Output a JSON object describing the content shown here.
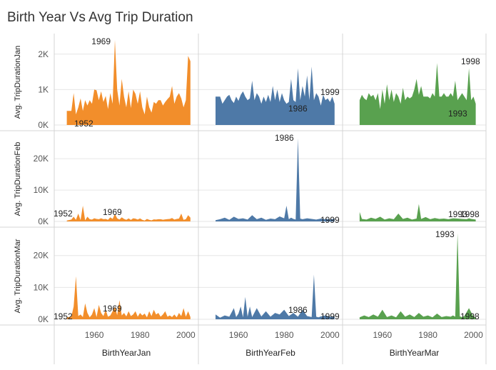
{
  "title": "Birth Year Vs Avg Trip Duration",
  "colors": {
    "Jan": "#f28e2b",
    "Feb": "#4e79a7",
    "Mar": "#59a14f",
    "grid": "#e6e6e6",
    "border": "#d4d4d4"
  },
  "chart_data": {
    "type": "area",
    "title": "Birth Year Vs Avg Trip Duration",
    "columns": [
      {
        "xlabel": "BirthYearJan",
        "xlim": [
          1945,
          2003
        ]
      },
      {
        "xlabel": "BirthYearFeb",
        "xlim": [
          1945,
          2003
        ]
      },
      {
        "xlabel": "BirthYearMar",
        "xlim": [
          1945,
          2003
        ]
      }
    ],
    "rows": [
      {
        "ylabel": "Avg. TripDurationJan",
        "ylim": [
          0,
          2500
        ],
        "yticks": [
          0,
          1000,
          2000
        ],
        "yticklabels": [
          "0K",
          "1K",
          "2K"
        ]
      },
      {
        "ylabel": "Avg. TripDurationFeb",
        "ylim": [
          0,
          28000
        ],
        "yticks": [
          0,
          10000,
          20000
        ],
        "yticklabels": [
          "0K",
          "10K",
          "20K"
        ]
      },
      {
        "ylabel": "Avg. TripDurationMar",
        "ylim": [
          0,
          28000
        ],
        "yticks": [
          0,
          10000,
          20000
        ],
        "yticklabels": [
          "0K",
          "10K",
          "20K"
        ]
      }
    ],
    "xticks": [
      1960,
      1980,
      2000
    ],
    "xticklabels": [
      "1960",
      "1980",
      "2000"
    ],
    "grid": true,
    "panels": [
      {
        "row": 0,
        "col": 0,
        "series": "Jan",
        "x": [
          1948,
          1950,
          1951,
          1952,
          1953,
          1954,
          1955,
          1956,
          1957,
          1958,
          1959,
          1960,
          1961,
          1962,
          1963,
          1964,
          1965,
          1966,
          1967,
          1968,
          1969,
          1970,
          1971,
          1972,
          1973,
          1974,
          1975,
          1976,
          1977,
          1978,
          1979,
          1980,
          1981,
          1982,
          1983,
          1984,
          1985,
          1986,
          1987,
          1988,
          1989,
          1990,
          1991,
          1992,
          1993,
          1994,
          1995,
          1996,
          1997,
          1998,
          1999,
          2000,
          2001,
          2002
        ],
        "y": [
          400,
          400,
          900,
          300,
          500,
          750,
          400,
          700,
          550,
          700,
          600,
          1000,
          980,
          700,
          950,
          650,
          820,
          450,
          900,
          600,
          2400,
          1000,
          550,
          1300,
          800,
          500,
          950,
          480,
          1000,
          880,
          600,
          950,
          500,
          300,
          800,
          500,
          350,
          650,
          600,
          700,
          700,
          550,
          650,
          730,
          800,
          1100,
          600,
          800,
          900,
          750,
          500,
          700,
          1950,
          1800
        ]
      },
      {
        "row": 0,
        "col": 1,
        "series": "Feb",
        "x": [
          1950,
          1951,
          1952,
          1953,
          1954,
          1955,
          1956,
          1957,
          1958,
          1959,
          1960,
          1961,
          1962,
          1963,
          1964,
          1965,
          1966,
          1967,
          1968,
          1969,
          1970,
          1971,
          1972,
          1973,
          1974,
          1975,
          1976,
          1977,
          1978,
          1979,
          1980,
          1981,
          1982,
          1983,
          1984,
          1985,
          1986,
          1987,
          1988,
          1989,
          1990,
          1991,
          1992,
          1993,
          1994,
          1995,
          1996,
          1997,
          1998,
          1999,
          2000,
          2001,
          2002
        ],
        "y": [
          800,
          800,
          800,
          600,
          700,
          800,
          850,
          700,
          620,
          800,
          680,
          850,
          950,
          800,
          700,
          750,
          1250,
          700,
          900,
          800,
          600,
          800,
          650,
          850,
          650,
          1100,
          700,
          1000,
          650,
          900,
          700,
          600,
          650,
          1300,
          700,
          650,
          1600,
          700,
          1100,
          800,
          1400,
          700,
          1650,
          700,
          900,
          800,
          550,
          850,
          700,
          750,
          650,
          800,
          600
        ]
      },
      {
        "row": 0,
        "col": 2,
        "series": "Mar",
        "x": [
          1950,
          1951,
          1952,
          1953,
          1954,
          1955,
          1956,
          1957,
          1958,
          1959,
          1960,
          1961,
          1962,
          1963,
          1964,
          1965,
          1966,
          1967,
          1968,
          1969,
          1970,
          1971,
          1972,
          1973,
          1974,
          1975,
          1976,
          1977,
          1978,
          1979,
          1980,
          1981,
          1982,
          1983,
          1984,
          1985,
          1986,
          1987,
          1988,
          1989,
          1990,
          1991,
          1992,
          1993,
          1994,
          1995,
          1996,
          1997,
          1998,
          1999,
          2000,
          2001
        ],
        "y": [
          700,
          850,
          750,
          700,
          900,
          800,
          850,
          700,
          900,
          450,
          1000,
          600,
          1150,
          700,
          1000,
          650,
          900,
          800,
          600,
          1050,
          700,
          800,
          750,
          800,
          1000,
          1300,
          850,
          1100,
          800,
          800,
          800,
          750,
          900,
          800,
          1750,
          800,
          800,
          900,
          800,
          800,
          900,
          800,
          1250,
          700,
          800,
          900,
          800,
          700,
          1600,
          700,
          800,
          600
        ]
      },
      {
        "row": 1,
        "col": 0,
        "series": "Jan",
        "x": [
          1948,
          1950,
          1951,
          1952,
          1953,
          1954,
          1955,
          1956,
          1957,
          1958,
          1959,
          1960,
          1961,
          1962,
          1963,
          1964,
          1965,
          1966,
          1967,
          1968,
          1969,
          1970,
          1971,
          1972,
          1973,
          1974,
          1975,
          1976,
          1977,
          1978,
          1979,
          1980,
          1981,
          1982,
          1983,
          1984,
          1985,
          1986,
          1987,
          1988,
          1989,
          1990,
          1991,
          1992,
          1993,
          1994,
          1995,
          1996,
          1997,
          1998,
          1999,
          2000,
          2001,
          2002
        ],
        "y": [
          300,
          600,
          1500,
          500,
          2500,
          400,
          5000,
          350,
          1500,
          700,
          600,
          1000,
          800,
          700,
          1000,
          700,
          800,
          500,
          1300,
          800,
          2400,
          1000,
          600,
          1300,
          800,
          500,
          950,
          480,
          1000,
          880,
          600,
          950,
          500,
          300,
          800,
          500,
          350,
          650,
          600,
          700,
          700,
          550,
          650,
          730,
          800,
          1100,
          600,
          800,
          900,
          2500,
          500,
          700,
          2000,
          1200
        ]
      },
      {
        "row": 1,
        "col": 1,
        "series": "Feb",
        "x": [
          1950,
          1952,
          1954,
          1956,
          1958,
          1960,
          1962,
          1964,
          1966,
          1968,
          1970,
          1972,
          1974,
          1976,
          1978,
          1980,
          1981,
          1982,
          1983,
          1984,
          1985,
          1986,
          1987,
          1988,
          1990,
          1992,
          1994,
          1996,
          1998,
          1999,
          2000,
          2002
        ],
        "y": [
          400,
          700,
          1200,
          500,
          1500,
          800,
          1000,
          600,
          2000,
          700,
          1200,
          500,
          900,
          700,
          1600,
          1000,
          5000,
          700,
          1200,
          800,
          600,
          26500,
          900,
          700,
          1000,
          800,
          600,
          900,
          700,
          800,
          600,
          900
        ]
      },
      {
        "row": 1,
        "col": 2,
        "series": "Mar",
        "x": [
          1950,
          1951,
          1953,
          1955,
          1957,
          1959,
          1961,
          1963,
          1965,
          1967,
          1969,
          1971,
          1973,
          1975,
          1976,
          1977,
          1979,
          1981,
          1983,
          1985,
          1987,
          1989,
          1991,
          1993,
          1995,
          1997,
          1998,
          1999,
          2001
        ],
        "y": [
          3000,
          800,
          600,
          1200,
          800,
          1500,
          600,
          1000,
          700,
          2500,
          800,
          1200,
          600,
          900,
          5500,
          800,
          1400,
          700,
          1100,
          800,
          900,
          700,
          1000,
          900,
          800,
          700,
          1000,
          800,
          600
        ]
      },
      {
        "row": 2,
        "col": 0,
        "series": "Jan",
        "x": [
          1948,
          1950,
          1951,
          1952,
          1953,
          1954,
          1955,
          1956,
          1957,
          1958,
          1959,
          1960,
          1961,
          1962,
          1963,
          1964,
          1965,
          1966,
          1967,
          1968,
          1969,
          1970,
          1971,
          1972,
          1973,
          1974,
          1975,
          1976,
          1977,
          1978,
          1979,
          1980,
          1981,
          1982,
          1983,
          1984,
          1985,
          1986,
          1987,
          1988,
          1989,
          1990,
          1991,
          1992,
          1993,
          1994,
          1995,
          1996,
          1997,
          1998,
          1999,
          2000,
          2001,
          2002
        ],
        "y": [
          600,
          800,
          4000,
          13500,
          1000,
          1500,
          700,
          5000,
          2000,
          600,
          1500,
          3500,
          700,
          4500,
          2000,
          1000,
          3000,
          800,
          1200,
          2500,
          4000,
          1300,
          6000,
          1200,
          2000,
          900,
          2500,
          1000,
          1500,
          2500,
          800,
          2000,
          1200,
          1800,
          600,
          2500,
          1000,
          3000,
          1500,
          2000,
          800,
          1500,
          2500,
          800,
          1200,
          700,
          1500,
          600,
          2000,
          1000,
          3500,
          800,
          2500,
          700
        ]
      },
      {
        "row": 2,
        "col": 1,
        "series": "Feb",
        "x": [
          1950,
          1952,
          1954,
          1956,
          1958,
          1959,
          1960,
          1961,
          1962,
          1963,
          1964,
          1965,
          1966,
          1968,
          1970,
          1972,
          1974,
          1976,
          1978,
          1980,
          1982,
          1984,
          1986,
          1988,
          1990,
          1992,
          1993,
          1994,
          1995,
          1996,
          1998,
          2000,
          2002
        ],
        "y": [
          1500,
          500,
          1200,
          800,
          3500,
          700,
          1800,
          4000,
          600,
          7000,
          800,
          4000,
          700,
          3500,
          900,
          2500,
          800,
          2000,
          1500,
          3000,
          1000,
          2000,
          800,
          3000,
          1000,
          700,
          14000,
          800,
          600,
          900,
          1200,
          800,
          1000
        ]
      },
      {
        "row": 2,
        "col": 2,
        "series": "Mar",
        "x": [
          1950,
          1952,
          1954,
          1956,
          1958,
          1960,
          1962,
          1964,
          1966,
          1968,
          1970,
          1972,
          1974,
          1976,
          1978,
          1980,
          1982,
          1984,
          1986,
          1988,
          1990,
          1991,
          1992,
          1993,
          1994,
          1995,
          1996,
          1998,
          2000,
          2001
        ],
        "y": [
          600,
          1200,
          700,
          1500,
          800,
          3000,
          700,
          1200,
          600,
          2500,
          800,
          1500,
          700,
          2000,
          800,
          1200,
          600,
          1800,
          700,
          1000,
          800,
          1200,
          800,
          27000,
          900,
          700,
          1000,
          3500,
          800,
          600
        ]
      }
    ],
    "annotations": [
      {
        "row": 0,
        "col": 0,
        "text": "1969"
      },
      {
        "row": 0,
        "col": 0,
        "text": "1952"
      },
      {
        "row": 0,
        "col": 1,
        "text": "1999"
      },
      {
        "row": 0,
        "col": 1,
        "text": "1986"
      },
      {
        "row": 0,
        "col": 2,
        "text": "1998"
      },
      {
        "row": 0,
        "col": 2,
        "text": "1993"
      },
      {
        "row": 1,
        "col": 0,
        "text": "1952"
      },
      {
        "row": 1,
        "col": 0,
        "text": "1969"
      },
      {
        "row": 1,
        "col": 1,
        "text": "1986"
      },
      {
        "row": 1,
        "col": 1,
        "text": "1999"
      },
      {
        "row": 1,
        "col": 2,
        "text": "1993"
      },
      {
        "row": 1,
        "col": 2,
        "text": "1998"
      },
      {
        "row": 2,
        "col": 0,
        "text": "1952"
      },
      {
        "row": 2,
        "col": 0,
        "text": "1969"
      },
      {
        "row": 2,
        "col": 1,
        "text": "1986"
      },
      {
        "row": 2,
        "col": 1,
        "text": "1999"
      },
      {
        "row": 2,
        "col": 2,
        "text": "1993"
      },
      {
        "row": 2,
        "col": 2,
        "text": "1998"
      }
    ]
  }
}
